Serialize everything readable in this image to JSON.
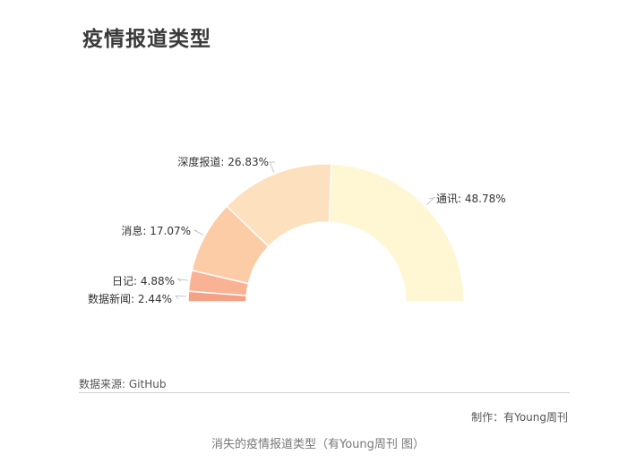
{
  "title": "疫情报道类型",
  "chart_data": {
    "type": "pie",
    "subtype": "half-donut",
    "slices": [
      {
        "label": "通讯",
        "value": 48.78,
        "color": "#fff6d3"
      },
      {
        "label": "深度报道",
        "value": 26.83,
        "color": "#fde0bd"
      },
      {
        "label": "消息",
        "value": 17.07,
        "color": "#fccca7"
      },
      {
        "label": "日记",
        "value": 4.88,
        "color": "#f9b294"
      },
      {
        "label": "数据新闻",
        "value": 2.44,
        "color": "#f5a186"
      }
    ],
    "unit": "%"
  },
  "source": "数据来源: GitHub",
  "maker": "制作：有Young周刊",
  "caption": "消失的疫情报道类型（有Young周刊 图）"
}
